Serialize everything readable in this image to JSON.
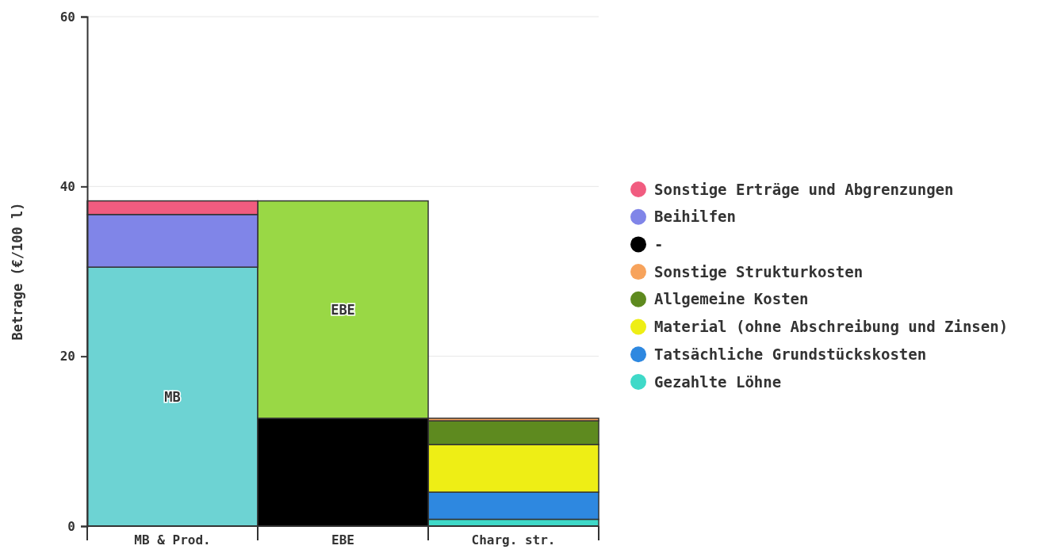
{
  "chart_data": {
    "type": "bar",
    "stacked": true,
    "ylabel": "Betrage (€/100 l)",
    "categories": [
      "MB & Prod.",
      "EBE",
      "Charg. str."
    ],
    "ylim": [
      0,
      60
    ],
    "yticks": [
      0,
      20,
      40,
      60
    ],
    "grid": "y",
    "legend": "right",
    "series": [
      {
        "color": "#6dd3d3",
        "values": [
          30.5,
          null,
          null
        ]
      },
      {
        "name": "Gezahlte Löhne",
        "color": "#3fd9c8",
        "values": [
          null,
          null,
          0.8
        ]
      },
      {
        "name": "Tatsächliche Grundstückskosten",
        "color": "#2e88e0",
        "values": [
          null,
          null,
          3.2
        ]
      },
      {
        "name": "Material (ohne Abschreibung und Zinsen)",
        "color": "#eeee15",
        "values": [
          null,
          null,
          5.6
        ]
      },
      {
        "name": "Allgemeine Kosten",
        "color": "#5e8a1f",
        "values": [
          null,
          null,
          2.8
        ]
      },
      {
        "name": "Sonstige Strukturkosten",
        "color": "#f7a35c",
        "values": [
          null,
          null,
          0.3
        ]
      },
      {
        "name": "-",
        "color": "#000000",
        "values": [
          null,
          12.7,
          null
        ]
      },
      {
        "color": "#99d845",
        "values": [
          null,
          25.6,
          null
        ]
      },
      {
        "name": "Beihilfen",
        "color": "#8085e8",
        "values": [
          6.2,
          null,
          null
        ]
      },
      {
        "name": "Sonstige Erträge und Abgrenzungen",
        "color": "#f15c80",
        "values": [
          1.6,
          null,
          null
        ]
      }
    ],
    "annotations": [
      "MB",
      "EBE"
    ]
  }
}
